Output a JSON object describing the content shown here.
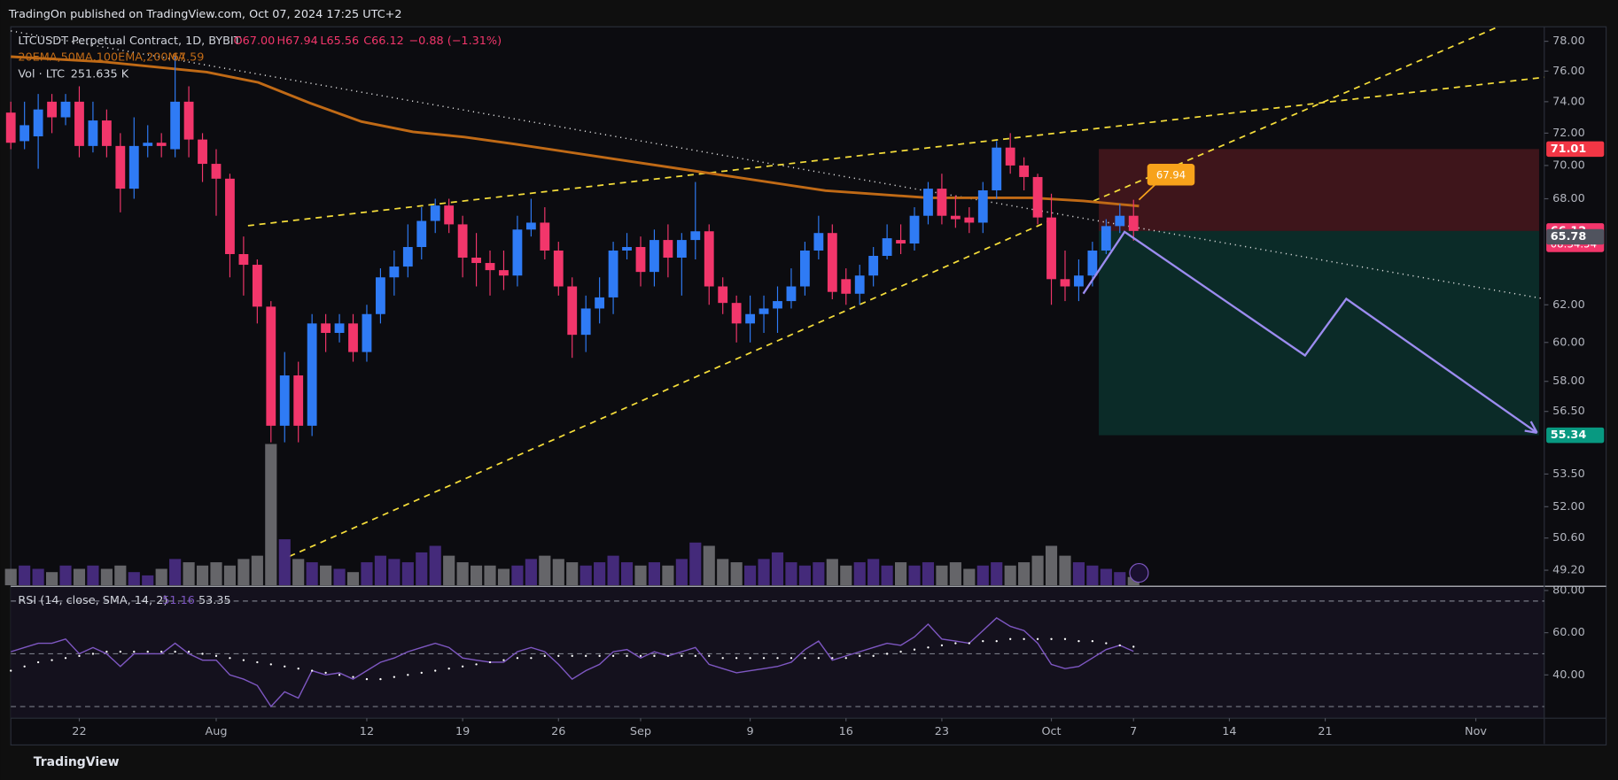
{
  "header": "TradingOn published on TradingView.com, Oct 07, 2024 17:25 UTC+2",
  "footer": "TradingView",
  "legend": {
    "symbol": "LTCUSDT Perpetual Contract, 1D, BYBIT",
    "ohlc": [
      "O67.00",
      "H67.94",
      "L65.56",
      "C66.12"
    ],
    "change": "−0.88 (−1.31%)",
    "ma": "20EMA,50MA,100EMA,200MA",
    "ma_value": "67.59",
    "vol": "Vol · LTC",
    "vol_value": "251.635 K",
    "rsi": "RSI (14, close, SMA, 14, 2)",
    "rsi_values": [
      "51.16",
      "53.35"
    ]
  },
  "chart_data": {
    "type": "candlestick",
    "log_scale": true,
    "up_color": "#2f7bf5",
    "down_color": "#f2366b",
    "x": [
      "2024-07-17",
      "2024-07-18",
      "2024-07-19",
      "2024-07-20",
      "2024-07-21",
      "2024-07-22",
      "2024-07-23",
      "2024-07-24",
      "2024-07-25",
      "2024-07-26",
      "2024-07-27",
      "2024-07-28",
      "2024-07-29",
      "2024-07-30",
      "2024-07-31",
      "2024-08-01",
      "2024-08-02",
      "2024-08-03",
      "2024-08-04",
      "2024-08-05",
      "2024-08-06",
      "2024-08-07",
      "2024-08-08",
      "2024-08-09",
      "2024-08-10",
      "2024-08-11",
      "2024-08-12",
      "2024-08-13",
      "2024-08-14",
      "2024-08-15",
      "2024-08-16",
      "2024-08-17",
      "2024-08-18",
      "2024-08-19",
      "2024-08-20",
      "2024-08-21",
      "2024-08-22",
      "2024-08-23",
      "2024-08-24",
      "2024-08-25",
      "2024-08-26",
      "2024-08-27",
      "2024-08-28",
      "2024-08-29",
      "2024-08-30",
      "2024-08-31",
      "2024-09-01",
      "2024-09-02",
      "2024-09-03",
      "2024-09-04",
      "2024-09-05",
      "2024-09-06",
      "2024-09-07",
      "2024-09-08",
      "2024-09-09",
      "2024-09-10",
      "2024-09-11",
      "2024-09-12",
      "2024-09-13",
      "2024-09-14",
      "2024-09-15",
      "2024-09-16",
      "2024-09-17",
      "2024-09-18",
      "2024-09-19",
      "2024-09-20",
      "2024-09-21",
      "2024-09-22",
      "2024-09-23",
      "2024-09-24",
      "2024-09-25",
      "2024-09-26",
      "2024-09-27",
      "2024-09-28",
      "2024-09-29",
      "2024-09-30",
      "2024-10-01",
      "2024-10-02",
      "2024-10-03",
      "2024-10-04",
      "2024-10-05",
      "2024-10-06",
      "2024-10-07"
    ],
    "open": [
      73.3,
      71.5,
      71.8,
      74,
      73,
      74,
      71.2,
      72.8,
      71.2,
      68.6,
      71.2,
      71.4,
      71,
      74,
      71.6,
      70.1,
      69.2,
      64.8,
      64.2,
      61.9,
      55.8,
      58.3,
      55.8,
      61,
      60.5,
      61,
      59.5,
      61.5,
      63.5,
      64.1,
      65.2,
      66.7,
      67.6,
      66.5,
      64.6,
      64.3,
      63.9,
      63.6,
      66.2,
      66.6,
      65,
      63,
      60.4,
      61.8,
      62.4,
      65,
      65.2,
      63.8,
      65.6,
      64.6,
      65.6,
      66.1,
      63,
      62.1,
      61,
      61.5,
      61.8,
      62.2,
      63,
      65,
      66,
      63.4,
      62.6,
      63.6,
      64.7,
      65.6,
      65.4,
      67,
      68.6,
      67,
      66.9,
      66.6,
      68.5,
      71.1,
      70,
      69.3,
      66.9,
      63.4,
      63,
      63.6,
      65,
      66.4,
      67
    ],
    "high": [
      74,
      74,
      74.5,
      74.5,
      74.5,
      75,
      74,
      73.5,
      72,
      73,
      72.5,
      72,
      77,
      75,
      72,
      71,
      69.5,
      65.8,
      64.5,
      62.2,
      59.5,
      59,
      61.5,
      61.5,
      61.5,
      61.5,
      62,
      64,
      65,
      66.5,
      67.5,
      68,
      68,
      67,
      66,
      65,
      65,
      67,
      68,
      67.5,
      65.5,
      63.5,
      62.5,
      63.5,
      65.5,
      66,
      65.8,
      66.2,
      66.5,
      66,
      69,
      66.5,
      63.5,
      62.5,
      62.5,
      62.5,
      63,
      64,
      65.5,
      67,
      66.5,
      64,
      64.2,
      65.2,
      66.5,
      66.5,
      67.5,
      69,
      69.5,
      68.2,
      67.5,
      69,
      71.5,
      72,
      70.5,
      69.5,
      68.3,
      65,
      64.5,
      65.5,
      66.8,
      67.7,
      67.94
    ],
    "low": [
      71,
      71,
      69.8,
      72,
      72.5,
      70.5,
      70.8,
      70.5,
      67.2,
      68,
      70.5,
      70.5,
      70.5,
      70.5,
      69,
      67,
      63.5,
      62.5,
      61,
      55,
      55,
      55,
      55.3,
      59.5,
      60,
      59,
      59,
      61,
      62.5,
      63.5,
      64.5,
      66,
      66,
      63.5,
      63,
      62.5,
      62.8,
      63,
      65.8,
      64.5,
      62.5,
      59.2,
      59.5,
      61,
      61.5,
      64.5,
      63,
      63,
      63.5,
      62.5,
      64.5,
      62,
      61.5,
      60,
      60,
      60.5,
      60.5,
      61.8,
      62.5,
      64.5,
      62.3,
      62,
      62,
      63,
      64.5,
      64.8,
      65,
      66.5,
      66.5,
      66.3,
      66,
      66,
      68,
      69.5,
      68.5,
      66.5,
      62,
      62.2,
      62.2,
      63,
      64.8,
      66,
      65.56
    ],
    "close": [
      71.4,
      72.5,
      73.5,
      73,
      74,
      71.2,
      72.8,
      71.2,
      68.6,
      71.2,
      71.4,
      71.2,
      74,
      71.6,
      70.1,
      69.2,
      64.8,
      64.2,
      61.9,
      55.8,
      58.3,
      55.8,
      61,
      60.5,
      61,
      59.5,
      61.5,
      63.5,
      64.1,
      65.2,
      66.7,
      67.6,
      66.5,
      64.6,
      64.3,
      63.9,
      63.6,
      66.2,
      66.6,
      65,
      63,
      60.4,
      61.8,
      62.4,
      65,
      65.2,
      63.8,
      65.6,
      64.6,
      65.6,
      66.1,
      63,
      62.1,
      61,
      61.5,
      61.8,
      62.2,
      63,
      65,
      66,
      62.7,
      62.6,
      63.6,
      64.7,
      65.7,
      65.4,
      67,
      68.6,
      67,
      66.8,
      66.6,
      68.5,
      71.1,
      70,
      69.3,
      66.9,
      63.4,
      63,
      63.6,
      65,
      66.4,
      67,
      66.12
    ],
    "volume": [
      500,
      600,
      500,
      400,
      600,
      500,
      600,
      500,
      600,
      400,
      300,
      500,
      800,
      700,
      600,
      700,
      600,
      800,
      900,
      4300,
      1400,
      800,
      700,
      600,
      500,
      400,
      700,
      900,
      800,
      700,
      1000,
      1200,
      900,
      700,
      600,
      600,
      500,
      600,
      800,
      900,
      800,
      700,
      600,
      700,
      900,
      700,
      600,
      700,
      600,
      800,
      1300,
      1200,
      800,
      700,
      600,
      800,
      1000,
      700,
      600,
      700,
      800,
      600,
      700,
      800,
      600,
      700,
      600,
      700,
      600,
      700,
      500,
      600,
      700,
      600,
      700,
      900,
      1200,
      900,
      700,
      600,
      500,
      400,
      251.635
    ],
    "vol_ylim": [
      0,
      17000
    ],
    "vol_up_color": "#4a2d86",
    "vol_down_color": "#6f6f73",
    "xlim": [
      "2024-07-17",
      "2024-11-06"
    ],
    "xticks": [
      {
        "value": "2024-07-22",
        "label": "22"
      },
      {
        "value": "2024-08-01",
        "label": "Aug"
      },
      {
        "value": "2024-08-12",
        "label": "12"
      },
      {
        "value": "2024-08-19",
        "label": "19"
      },
      {
        "value": "2024-08-26",
        "label": "26"
      },
      {
        "value": "2024-09-01",
        "label": "Sep"
      },
      {
        "value": "2024-09-09",
        "label": "9"
      },
      {
        "value": "2024-09-16",
        "label": "16"
      },
      {
        "value": "2024-09-23",
        "label": "23"
      },
      {
        "value": "2024-10-01",
        "label": "Oct"
      },
      {
        "value": "2024-10-07",
        "label": "7"
      },
      {
        "value": "2024-10-14",
        "label": "14"
      },
      {
        "value": "2024-10-21",
        "label": "21"
      },
      {
        "value": "2024-11-01",
        "label": "Nov"
      }
    ],
    "ylim": [
      48.56,
      78.99
    ],
    "yticks": [
      {
        "value": 78,
        "label": "78.00"
      },
      {
        "value": 76,
        "label": "76.00"
      },
      {
        "value": 74,
        "label": "74.00"
      },
      {
        "value": 72,
        "label": "72.00"
      },
      {
        "value": 70,
        "label": "70.00"
      },
      {
        "value": 68,
        "label": "68.00"
      },
      {
        "value": 62,
        "label": "62.00"
      },
      {
        "value": 60,
        "label": "60.00"
      },
      {
        "value": 58,
        "label": "58.00"
      },
      {
        "value": 56.5,
        "label": "56.50"
      },
      {
        "value": 53.5,
        "label": "53.50"
      },
      {
        "value": 52,
        "label": "52.00"
      },
      {
        "value": 50.6,
        "label": "50.60"
      },
      {
        "value": 49.2,
        "label": "49.20"
      }
    ],
    "price_tags": [
      {
        "value": 71.01,
        "color": "#f23645"
      },
      {
        "value": 66.12,
        "color": "#f2366b",
        "countdown": "08:34:54"
      },
      {
        "value": 65.78,
        "color": "#50535e"
      },
      {
        "value": 55.34,
        "color": "#089981"
      }
    ],
    "callout": 67.94,
    "stop_loss": 71.01,
    "entry": 66.12,
    "target": 55.34,
    "rsi": {
      "values": [
        51,
        53,
        55,
        55,
        57,
        50,
        53,
        50,
        44,
        50,
        50,
        50,
        55,
        50,
        47,
        47,
        40,
        38,
        35,
        25,
        32,
        29,
        42,
        40,
        41,
        38,
        42,
        46,
        48,
        51,
        53,
        55,
        53,
        48,
        47,
        46,
        46,
        51,
        53,
        51,
        45,
        38,
        42,
        45,
        51,
        52,
        48,
        51,
        49,
        51,
        53,
        45,
        43,
        41,
        42,
        43,
        44,
        46,
        52,
        56,
        47,
        49,
        51,
        53,
        55,
        54,
        58,
        64,
        57,
        56,
        55,
        61,
        67,
        63,
        61,
        55,
        45,
        43,
        44,
        48,
        52,
        54,
        51.16
      ],
      "sma": [
        42,
        44,
        46,
        47,
        48,
        49,
        50,
        51,
        51,
        51,
        51,
        51,
        51,
        51,
        50,
        49,
        48,
        47,
        46,
        45,
        44,
        43,
        42,
        41,
        40,
        39,
        38,
        38,
        39,
        40,
        41,
        42,
        43,
        44,
        45,
        46,
        47,
        48,
        48,
        49,
        49,
        49,
        49,
        49,
        49,
        49,
        49,
        49,
        49,
        49,
        49,
        49,
        48,
        48,
        48,
        48,
        48,
        48,
        48,
        48,
        48,
        48,
        49,
        49,
        50,
        51,
        52,
        53,
        54,
        55,
        55,
        56,
        56,
        57,
        57,
        57,
        57,
        57,
        56,
        56,
        55,
        54,
        53.35
      ],
      "color": "#7e57c2",
      "sma_color": "#ffffff",
      "ylim": [
        19.5,
        81.5
      ],
      "yticks": [
        {
          "value": 80,
          "label": "80.00"
        },
        {
          "value": 60,
          "label": "60.00"
        },
        {
          "value": 40,
          "label": "40.00"
        }
      ],
      "levels": [
        75,
        50,
        25
      ]
    }
  }
}
